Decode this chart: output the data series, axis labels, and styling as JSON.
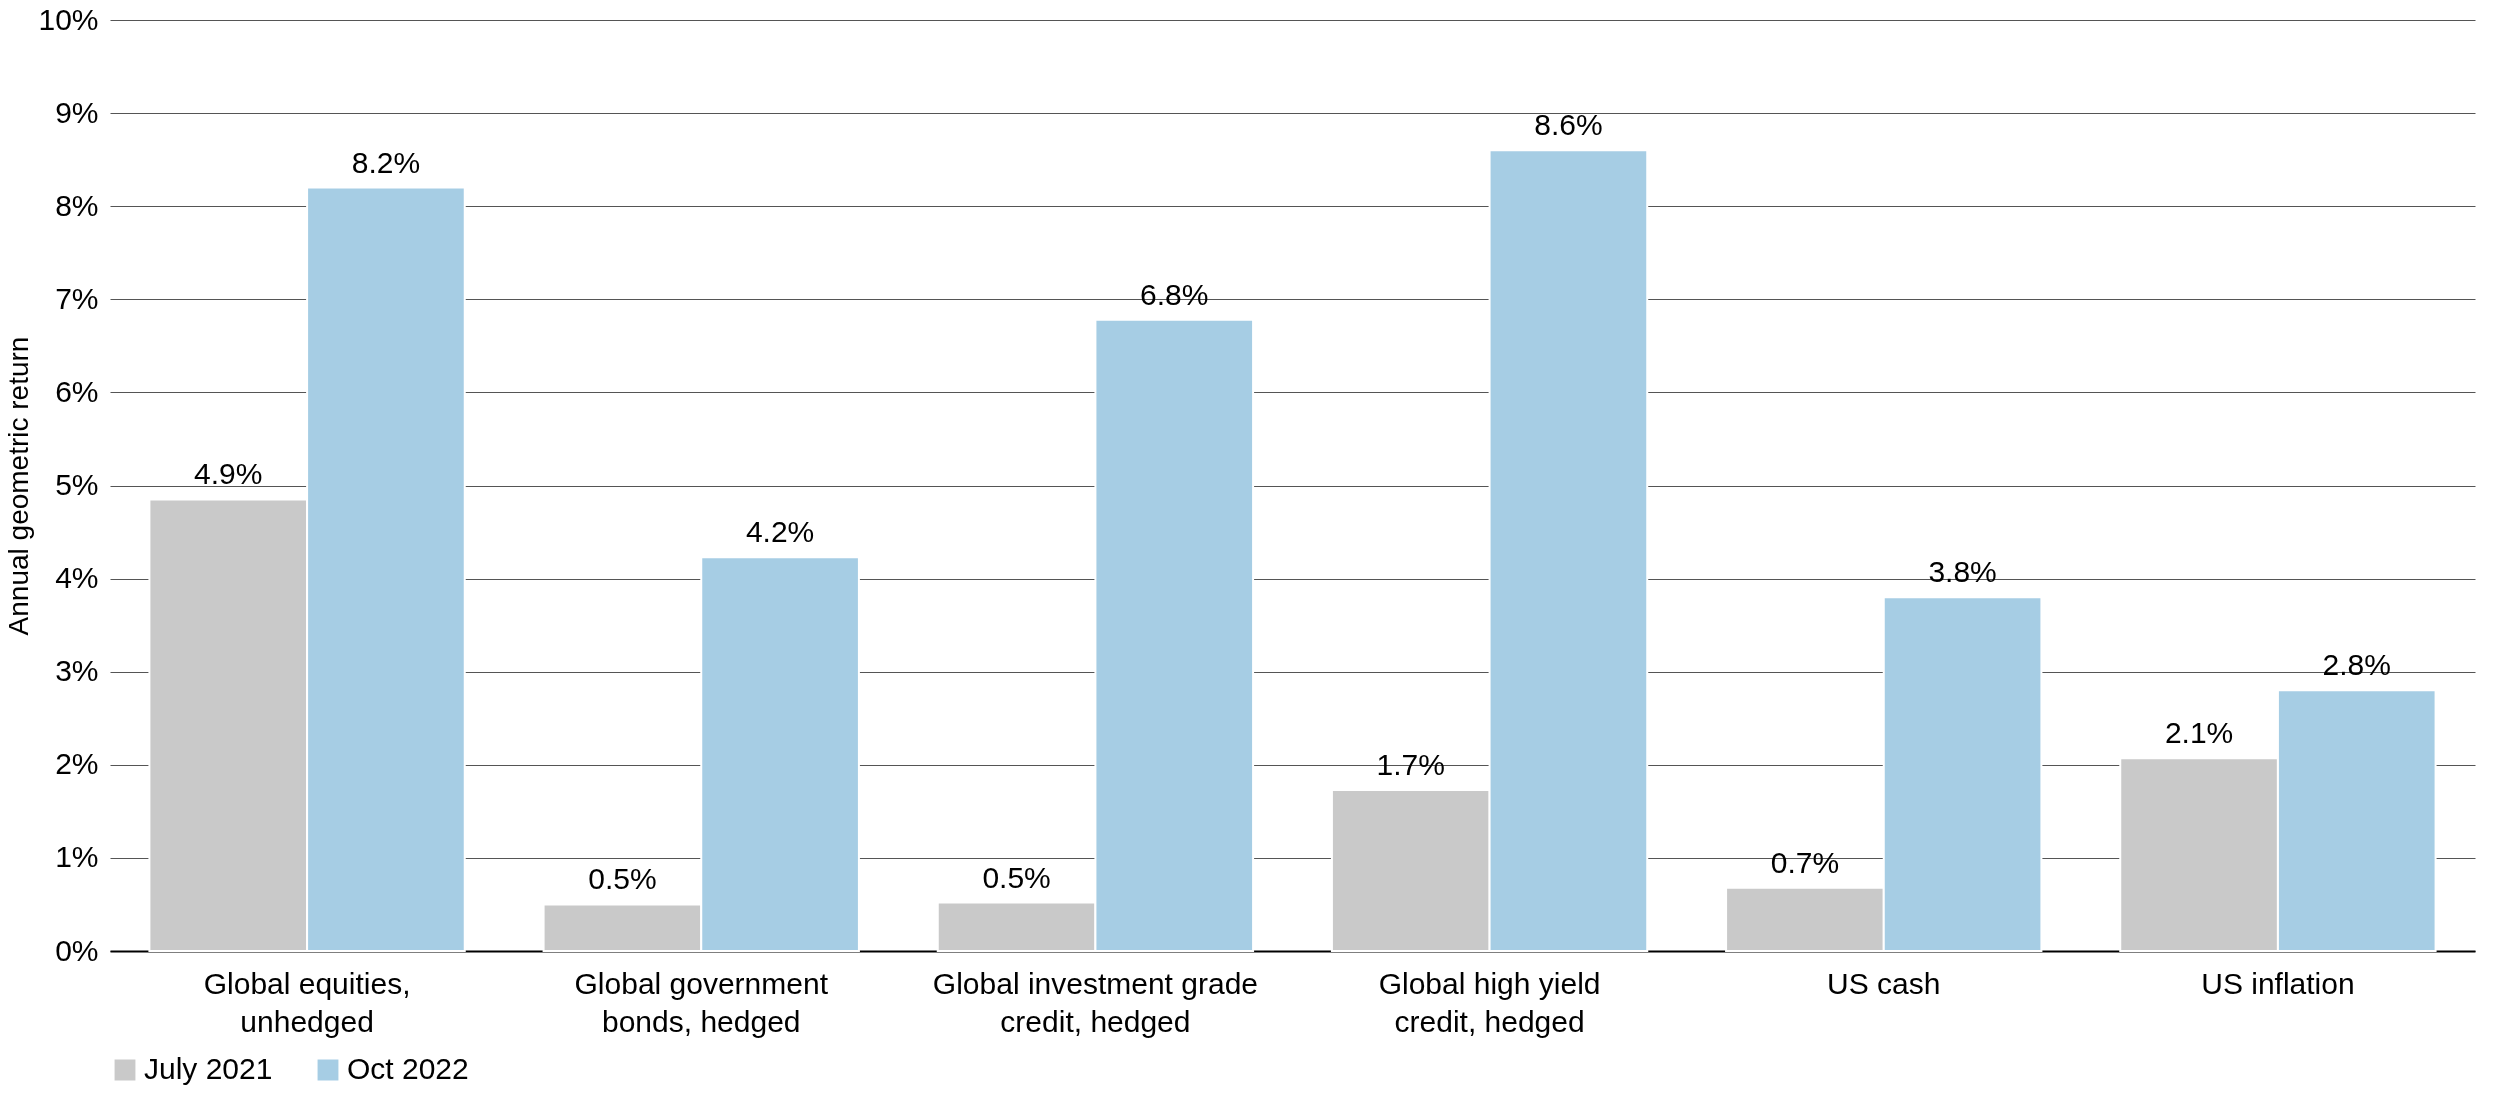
{
  "chart_data": {
    "type": "bar",
    "ylabel": "Annual geometric return",
    "categories": [
      "Global equities, unhedged",
      "Global government bonds, hedged",
      "Global investment grade credit, hedged",
      "Global high yield credit, hedged",
      "US cash",
      "US inflation"
    ],
    "series": [
      {
        "name": "July 2021",
        "color": "#c9c9c9",
        "values": [
          4.85,
          0.5,
          0.52,
          1.73,
          0.68,
          2.07
        ],
        "value_labels": [
          "4.9%",
          "0.5%",
          "0.5%",
          "1.7%",
          "0.7%",
          "2.1%"
        ]
      },
      {
        "name": "Oct 2022",
        "color": "#a6cde4",
        "values": [
          8.2,
          4.23,
          6.78,
          8.6,
          3.8,
          2.8
        ],
        "value_labels": [
          "8.2%",
          "4.2%",
          "6.8%",
          "8.6%",
          "3.8%",
          "2.8%"
        ]
      }
    ],
    "ylim": [
      0,
      10
    ],
    "yticks": [
      {
        "value": 0,
        "label": "0%"
      },
      {
        "value": 1,
        "label": "1%"
      },
      {
        "value": 2,
        "label": "2%"
      },
      {
        "value": 3,
        "label": "3%"
      },
      {
        "value": 4,
        "label": "4%"
      },
      {
        "value": 5,
        "label": "5%"
      },
      {
        "value": 6,
        "label": "6%"
      },
      {
        "value": 7,
        "label": "7%"
      },
      {
        "value": 8,
        "label": "8%"
      },
      {
        "value": 9,
        "label": "9%"
      },
      {
        "value": 10,
        "label": "10%"
      }
    ],
    "grid": "y",
    "legend": "bottom"
  }
}
